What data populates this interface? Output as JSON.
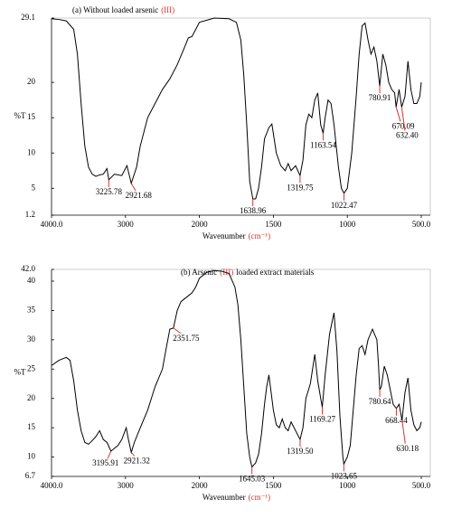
{
  "chart_data": [
    {
      "type": "line",
      "title_parts": [
        {
          "text": "(a) Without loaded arsenic",
          "color": "#000000"
        },
        {
          "text": "(III)",
          "color": "#d9342b"
        }
      ],
      "xlabel_parts": [
        {
          "text": "Wavenumber",
          "color": "#000000"
        },
        {
          "text": "(cm⁻¹)",
          "color": "#d9342b"
        }
      ],
      "ylabel": "%T",
      "color": "#000000",
      "peak_color": "#d9342b",
      "xlim": [
        4000,
        500
      ],
      "xticks": [
        {
          "value": 4000,
          "label": "4000.0"
        },
        3000,
        2000,
        1500,
        1000,
        {
          "value": 500,
          "label": "500.0"
        }
      ],
      "x_ticks_evenly_spaced": true,
      "ylim": [
        1.2,
        29.1
      ],
      "yticks": [
        1.2,
        5,
        10,
        15,
        20,
        29.1
      ],
      "x": [
        4000,
        3900,
        3800,
        3700,
        3650,
        3600,
        3550,
        3500,
        3450,
        3400,
        3350,
        3300,
        3250,
        3225.78,
        3150,
        3050,
        2980,
        2921.68,
        2850,
        2800,
        2700,
        2600,
        2500,
        2400,
        2300,
        2200,
        2150,
        2100,
        2050,
        2000,
        1900,
        1800,
        1750,
        1720,
        1700,
        1680,
        1660,
        1638.96,
        1620,
        1600,
        1580,
        1560,
        1530,
        1510,
        1480,
        1450,
        1420,
        1400,
        1380,
        1350,
        1319.75,
        1300,
        1280,
        1260,
        1240,
        1220,
        1200,
        1180,
        1163.54,
        1150,
        1130,
        1110,
        1090,
        1060,
        1040,
        1022.47,
        1000,
        970,
        940,
        920,
        900,
        880,
        860,
        840,
        820,
        800,
        780.91,
        760,
        740,
        720,
        700,
        680,
        670.09,
        650,
        632.4,
        610,
        590,
        570,
        550,
        530,
        510,
        500
      ],
      "values": [
        29.0,
        28.9,
        28.7,
        27.5,
        24,
        17,
        11,
        8,
        7,
        6.7,
        6.9,
        7.0,
        7.8,
        6.2,
        7.0,
        6.8,
        8.2,
        5.7,
        8,
        11,
        15,
        17,
        19,
        20.5,
        22.5,
        25,
        26.3,
        26.5,
        27.5,
        28.5,
        29.1,
        29.0,
        28.5,
        26,
        21,
        14,
        6,
        3.5,
        3.5,
        5,
        8,
        12,
        13.6,
        14.1,
        10,
        8.2,
        7.5,
        8.5,
        7.5,
        8.2,
        6.8,
        9,
        14,
        15.5,
        15,
        17.5,
        18.5,
        14,
        12.8,
        15,
        17.5,
        17,
        14,
        8,
        5,
        4.3,
        5,
        10,
        18,
        24,
        28,
        28.4,
        26,
        24,
        25,
        23,
        19.5,
        24,
        22.5,
        20,
        19,
        18.5,
        16.5,
        19,
        16.5,
        18,
        23,
        19,
        17,
        17,
        18,
        20
      ],
      "peaks": [
        {
          "x": 3225.78,
          "y": 6.2,
          "label": "3225.78"
        },
        {
          "x": 2921.68,
          "y": 5.7,
          "label": "2921.68"
        },
        {
          "x": 1638.96,
          "y": 3.5,
          "label": "1638.96"
        },
        {
          "x": 1319.75,
          "y": 6.8,
          "label": "1319.75"
        },
        {
          "x": 1163.54,
          "y": 12.8,
          "label": "1163.54"
        },
        {
          "x": 1022.47,
          "y": 4.3,
          "label": "1022.47"
        },
        {
          "x": 780.91,
          "y": 19.5,
          "label": "780.91"
        },
        {
          "x": 670.09,
          "y": 16.5,
          "label": "670.09"
        },
        {
          "x": 632.4,
          "y": 16.5,
          "label": "632.40"
        }
      ]
    },
    {
      "type": "line",
      "title_parts": [
        {
          "text": "(b) Arsenic",
          "color": "#000000"
        },
        {
          "text": "(III)",
          "color": "#d9342b"
        },
        {
          "text": "loaded extract materials",
          "color": "#000000"
        }
      ],
      "xlabel_parts": [
        {
          "text": "Wavenumber",
          "color": "#000000"
        },
        {
          "text": "(cm⁻¹)",
          "color": "#d9342b"
        }
      ],
      "ylabel": "%T",
      "color": "#000000",
      "peak_color": "#d9342b",
      "xlim": [
        4000,
        500
      ],
      "xticks": [
        {
          "value": 4000,
          "label": "4000.0"
        },
        3000,
        2000,
        1500,
        1000,
        {
          "value": 500,
          "label": "500.0"
        }
      ],
      "x_ticks_evenly_spaced": true,
      "ylim": [
        6.7,
        42.0
      ],
      "yticks": [
        6.7,
        10,
        15,
        20,
        25,
        30,
        35,
        40,
        {
          "value": 42.0,
          "label": "42.0"
        }
      ],
      "x": [
        4000,
        3900,
        3800,
        3750,
        3700,
        3650,
        3600,
        3550,
        3500,
        3450,
        3400,
        3350,
        3300,
        3250,
        3195.91,
        3100,
        3050,
        2990,
        2960,
        2921.32,
        2880,
        2800,
        2700,
        2600,
        2500,
        2450,
        2400,
        2351.75,
        2300,
        2250,
        2200,
        2150,
        2100,
        2050,
        2000,
        1950,
        1900,
        1850,
        1800,
        1760,
        1740,
        1720,
        1700,
        1680,
        1660,
        1645.03,
        1620,
        1600,
        1580,
        1560,
        1545,
        1530,
        1500,
        1480,
        1460,
        1440,
        1420,
        1400,
        1380,
        1360,
        1319.5,
        1300,
        1280,
        1250,
        1220,
        1200,
        1180,
        1169.27,
        1150,
        1120,
        1090,
        1070,
        1050,
        1030,
        1023.65,
        1000,
        980,
        960,
        940,
        920,
        900,
        880,
        860,
        830,
        800,
        790,
        780.64,
        770,
        750,
        730,
        710,
        690,
        668.44,
        650,
        630.18,
        610,
        590,
        570,
        550,
        530,
        510,
        500
      ],
      "values": [
        25.6,
        26.5,
        27,
        26.5,
        23,
        18,
        14.5,
        12.5,
        12.2,
        12.8,
        13.5,
        14.5,
        13,
        12.5,
        11,
        12,
        13,
        15,
        13,
        10.8,
        12.5,
        15,
        18,
        22,
        25,
        28.5,
        31.8,
        32.0,
        35,
        36.5,
        37,
        37.5,
        38.0,
        39,
        40.5,
        41.5,
        41.8,
        41.7,
        41.3,
        39,
        36,
        30,
        22,
        14,
        10,
        8.3,
        9,
        10.5,
        14,
        19,
        22,
        24,
        18,
        15.5,
        15,
        16.5,
        15,
        14.5,
        16,
        15,
        13,
        15,
        20,
        22.5,
        27.5,
        23,
        20,
        18.5,
        24,
        31,
        34.6,
        28,
        17,
        10,
        8.8,
        10,
        12,
        18,
        24,
        28.5,
        29,
        27.5,
        30,
        31.8,
        30,
        26,
        21.5,
        22,
        25.5,
        24,
        21.5,
        19,
        18.3,
        19,
        16.3,
        21,
        23.5,
        18,
        15.5,
        14.5,
        15,
        16
      ],
      "peaks": [
        {
          "x": 3195.91,
          "y": 11,
          "label": "3195.91"
        },
        {
          "x": 2921.32,
          "y": 10.8,
          "label": "2921.32"
        },
        {
          "x": 2351.75,
          "y": 32.0,
          "label": "2351.75"
        },
        {
          "x": 1645.03,
          "y": 8.3,
          "label": "1645.03"
        },
        {
          "x": 1319.5,
          "y": 13,
          "label": "1319.50"
        },
        {
          "x": 1169.27,
          "y": 18.5,
          "label": "1169.27"
        },
        {
          "x": 1023.65,
          "y": 8.8,
          "label": "1023.65"
        },
        {
          "x": 780.64,
          "y": 21.5,
          "label": "780.64"
        },
        {
          "x": 668.44,
          "y": 18.3,
          "label": "668.44"
        },
        {
          "x": 630.18,
          "y": 16.3,
          "label": "630.18"
        }
      ]
    }
  ]
}
